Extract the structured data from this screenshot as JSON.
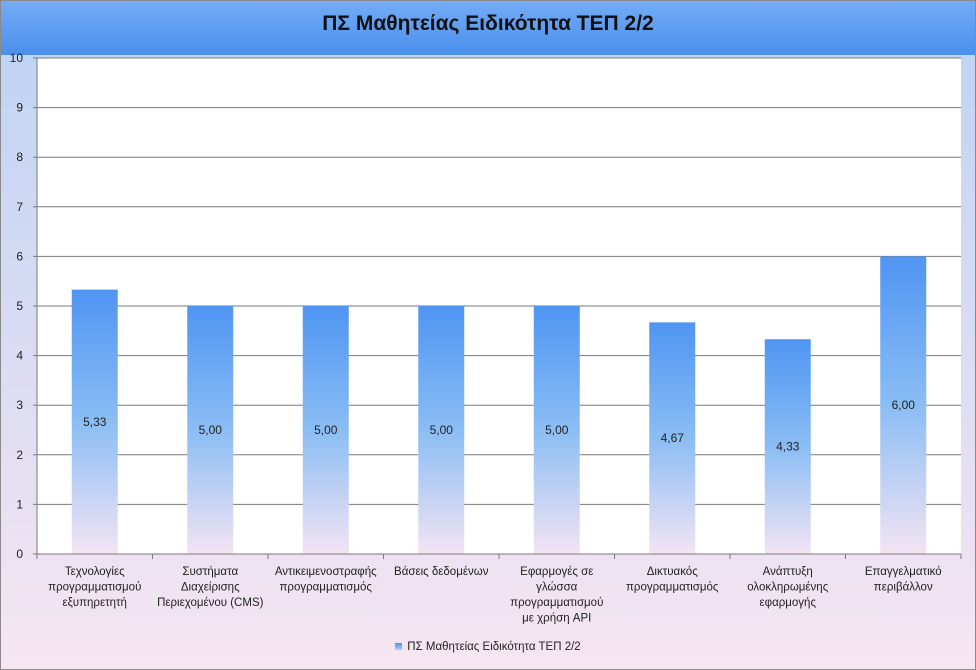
{
  "chart_data": {
    "type": "bar",
    "title": "ΠΣ Μαθητείας Ειδικότητα ΤΕΠ 2/2",
    "categories": [
      [
        "Τεχνολογίες",
        "προγραμματισμού",
        "εξυπηρετητή"
      ],
      [
        "Συστήματα",
        "Διαχείρισης",
        "Περιεχομένου (CMS)"
      ],
      [
        "Αντικειμενοστραφής",
        "προγραμματισμός"
      ],
      [
        "Βάσεις δεδομένων"
      ],
      [
        "Εφαρμογές σε",
        "γλώσσα",
        "προγραμματισμού",
        "με χρήση API"
      ],
      [
        "Δικτυακός",
        "προγραμματισμός"
      ],
      [
        "Ανάπτυξη",
        "ολοκληρωμένης",
        "εφαρμογής"
      ],
      [
        "Επαγγελματικό",
        "περιβάλλον"
      ]
    ],
    "series": [
      {
        "name": "ΠΣ Μαθητείας  Ειδικότητα ΤΕΠ 2/2",
        "values": [
          5.33,
          5.0,
          5.0,
          5.0,
          5.0,
          4.67,
          4.33,
          6.0
        ],
        "labels": [
          "5,33",
          "5,00",
          "5,00",
          "5,00",
          "5,00",
          "4,67",
          "4,33",
          "6,00"
        ]
      }
    ],
    "ylim": [
      0,
      10
    ],
    "yticks": [
      0,
      1,
      2,
      3,
      4,
      5,
      6,
      7,
      8,
      9,
      10
    ],
    "grid": true,
    "legend": "bottom",
    "colors": {
      "bar_top": "#4f95f2",
      "bar_mid": "#8bbdf4",
      "bar_bottom": "#f3e4f3"
    }
  }
}
